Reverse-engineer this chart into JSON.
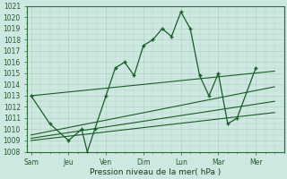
{
  "xlabel": "Pression niveau de la mer( hPa )",
  "background_color": "#cce8e0",
  "grid_color": "#aaccbb",
  "line_color": "#1a5c28",
  "ylim": [
    1008,
    1021
  ],
  "yticks": [
    1008,
    1009,
    1010,
    1011,
    1012,
    1013,
    1014,
    1015,
    1016,
    1017,
    1018,
    1019,
    1020,
    1021
  ],
  "xtick_labels": [
    "Sam",
    "Jeu",
    "Ven",
    "Dim",
    "Lun",
    "Mar",
    "Mer"
  ],
  "xtick_positions": [
    0,
    2,
    4,
    6,
    8,
    10,
    12
  ],
  "xlim": [
    -0.2,
    13.5
  ],
  "main_x": [
    0,
    1,
    2,
    2.7,
    3.0,
    3.4,
    4,
    4.5,
    5,
    5.5,
    6,
    6.5,
    7,
    7.5,
    8,
    8.5,
    9,
    9.5,
    10,
    10.5,
    11,
    12
  ],
  "main_y": [
    1013,
    1010.5,
    1009,
    1010,
    1008,
    1010,
    1013,
    1015.5,
    1016,
    1014.8,
    1017.5,
    1018,
    1019,
    1018.3,
    1020.5,
    1019,
    1014.8,
    1013,
    1015,
    1010.5,
    1011,
    1015.5
  ],
  "trend_lines": [
    [
      0,
      13,
      1013.0,
      1015.2
    ],
    [
      0,
      13,
      1009.5,
      1013.8
    ],
    [
      0,
      13,
      1009.2,
      1012.5
    ],
    [
      0,
      13,
      1009.0,
      1011.5
    ]
  ]
}
